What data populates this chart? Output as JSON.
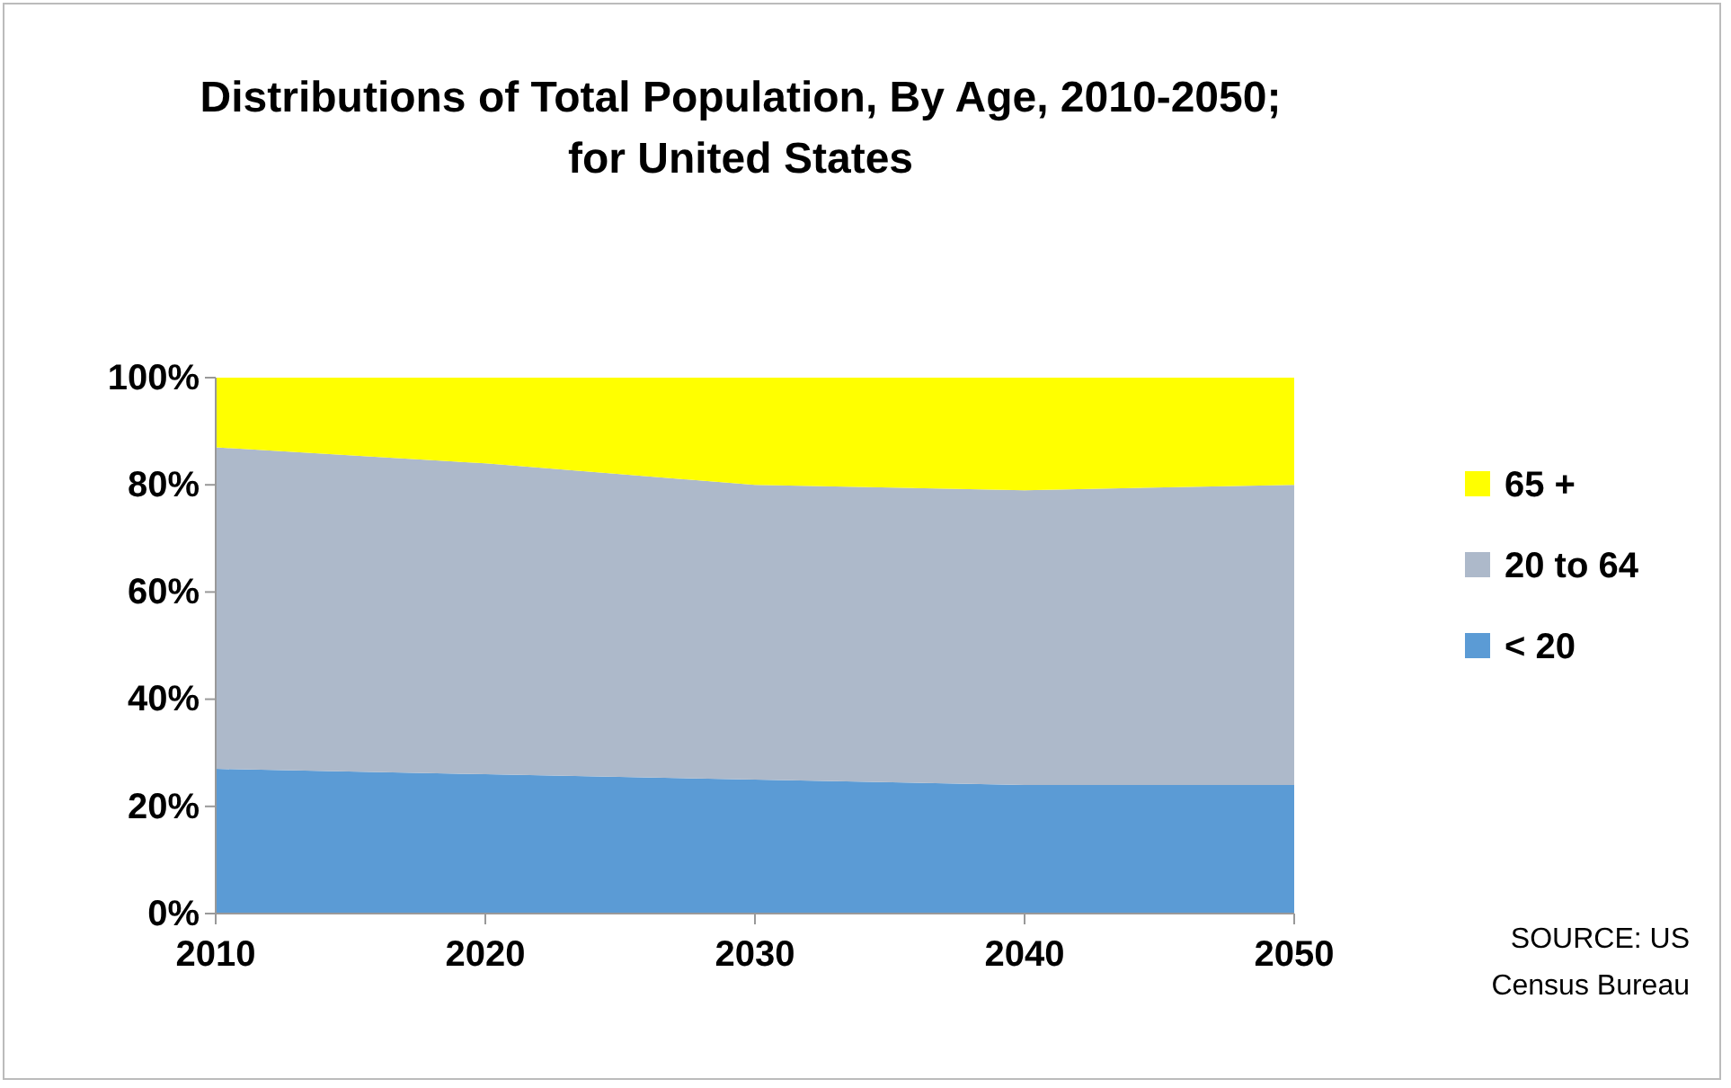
{
  "chart_data": {
    "type": "area",
    "stacked": true,
    "title": "Distributions of Total Population, By Age, 2010-2050;\nfor United States",
    "x": [
      2010,
      2020,
      2030,
      2040,
      2050
    ],
    "series": [
      {
        "name": "< 20",
        "color": "#5b9bd5",
        "values": [
          27,
          26,
          25,
          24,
          24
        ]
      },
      {
        "name": "20 to 64",
        "color": "#adb9ca",
        "values": [
          60,
          58,
          55,
          55,
          56
        ]
      },
      {
        "name": "65 +",
        "color": "#ffff00",
        "values": [
          13,
          16,
          20,
          21,
          20
        ]
      }
    ],
    "xlim": [
      2010,
      2050
    ],
    "xticks": [
      2010,
      2020,
      2030,
      2040,
      2050
    ],
    "ylim": [
      0,
      100
    ],
    "yticks": [
      {
        "value": 0,
        "label": "0%"
      },
      {
        "value": 20,
        "label": "20%"
      },
      {
        "value": 40,
        "label": "40%"
      },
      {
        "value": 60,
        "label": "60%"
      },
      {
        "value": 80,
        "label": "80%"
      },
      {
        "value": 100,
        "label": "100%"
      }
    ],
    "legend": "right",
    "annotations": [
      "SOURCE: US\nCensus Bureau"
    ]
  }
}
